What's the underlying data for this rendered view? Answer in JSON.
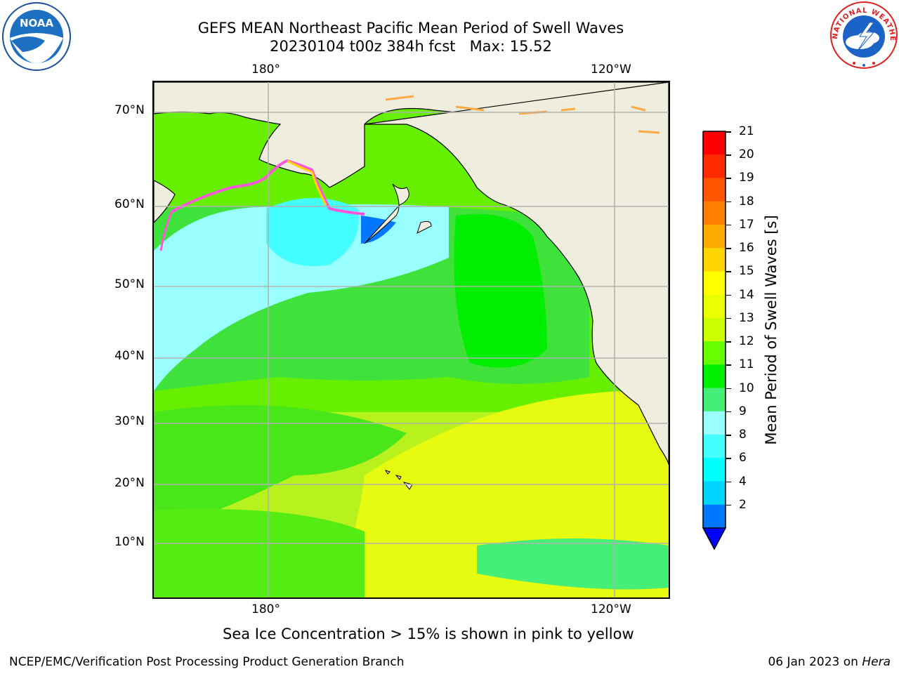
{
  "title": {
    "line1": "GEFS MEAN Northeast Pacific Mean Period of Swell Waves",
    "line2": "20230104 t00z 384h fcst   Max: 15.52"
  },
  "map": {
    "lon_labels_top": [
      "180°",
      "120°W"
    ],
    "lon_labels_bottom": [
      "180°",
      "120°W"
    ],
    "lat_labels": [
      "70°N",
      "60°N",
      "50°N",
      "40°N",
      "30°N",
      "20°N",
      "10°N"
    ],
    "land_color": "#efedde",
    "grid_color": "#b0b0b0"
  },
  "colorbar": {
    "label": "Mean Period of Swell Waves [s]",
    "ticks": [
      "21",
      "20",
      "19",
      "18",
      "17",
      "16",
      "15",
      "14",
      "13",
      "12",
      "11",
      "10",
      "9",
      "8",
      "6",
      "4",
      "2"
    ],
    "colors_top_to_bottom": [
      "#ff0000",
      "#ff2a00",
      "#ff5500",
      "#ff7f00",
      "#ffaa00",
      "#ffd400",
      "#ffff00",
      "#eaff00",
      "#ccff00",
      "#66ff00",
      "#00ee00",
      "#44ee77",
      "#99ffff",
      "#44ffff",
      "#00ffff",
      "#00d5ff",
      "#0077ff"
    ],
    "extend_color": "#0000ff"
  },
  "note": "Sea Ice Concentration > 15% is shown in pink to yellow",
  "footer": {
    "left": "NCEP/EMC/Verification Post Processing Product Generation Branch",
    "date": "06 Jan 2023 on ",
    "machine": "Hera"
  },
  "logos": {
    "noaa": "NOAA",
    "nws_ring": "NATIONAL WEATHER SERVICE"
  }
}
